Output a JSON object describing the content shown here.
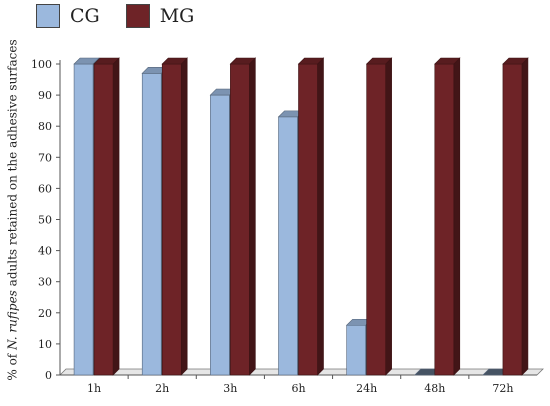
{
  "chart_data": {
    "type": "bar",
    "categories": [
      "1h",
      "2h",
      "3h",
      "6h",
      "24h",
      "48h",
      "72h"
    ],
    "series": [
      {
        "name": "CG",
        "color": "#9bb8dd",
        "values": [
          100,
          97,
          90,
          83,
          16,
          0,
          0
        ]
      },
      {
        "name": "MG",
        "color": "#6e2327",
        "values": [
          100,
          100,
          100,
          100,
          100,
          100,
          100
        ]
      }
    ],
    "ylabel_parts": {
      "prefix": "% of ",
      "italic": "N. rufipes",
      "suffix": " adults retained on the adhesive surfaces"
    },
    "ylim": [
      0,
      100
    ],
    "yticks": [
      "0",
      "10",
      "20",
      "30",
      "40",
      "50",
      "60",
      "70",
      "80",
      "90",
      "100"
    ],
    "legend_position": "top-left",
    "grid": false
  }
}
